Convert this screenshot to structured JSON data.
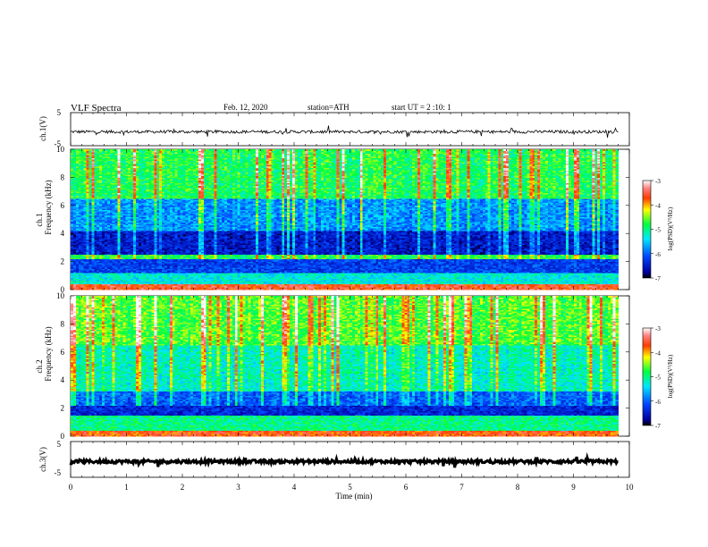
{
  "header": {
    "title": "VLF Spectra",
    "date": "Feb. 12, 2020",
    "station": "station=ATH",
    "start": "start UT = 2 :10: 1"
  },
  "chart_data": [
    {
      "type": "line",
      "id": "ch1-waveform",
      "ylabel": "ch.1(V)",
      "yticks": [
        "5",
        "-5"
      ],
      "ylim": [
        -5,
        5
      ],
      "xlim": [
        0,
        10
      ],
      "data_extent_x": [
        0,
        9.8
      ],
      "baseline": -0.8,
      "color": "#000000"
    },
    {
      "type": "heatmap",
      "id": "ch1-spectrogram",
      "ylabel_1": "ch.1",
      "ylabel_2": "Frequency (kHz)",
      "yticks": [
        "0",
        "2",
        "4",
        "6",
        "8",
        "10"
      ],
      "ylim": [
        0,
        10
      ],
      "xlim": [
        0,
        10
      ],
      "data_extent_x": [
        0,
        9.8
      ],
      "colorbar": {
        "label": "log(PSD)(V²/Hz)",
        "ticks": [
          "-3",
          "-4",
          "-5",
          "-6",
          "-7"
        ],
        "range": [
          -7,
          -3
        ]
      },
      "bands": [
        {
          "f": [
            0,
            0.4
          ],
          "v": -3.6
        },
        {
          "f": [
            0.4,
            1.2
          ],
          "v": -5.3
        },
        {
          "f": [
            1.2,
            2.2
          ],
          "v": -6.2
        },
        {
          "f": [
            2.2,
            2.5
          ],
          "v": -4.9
        },
        {
          "f": [
            2.5,
            4.2
          ],
          "v": -6.6
        },
        {
          "f": [
            4.2,
            6.5
          ],
          "v": -5.9
        },
        {
          "f": [
            6.5,
            10
          ],
          "v": -5.0
        }
      ]
    },
    {
      "type": "heatmap",
      "id": "ch2-spectrogram",
      "ylabel_1": "ch.2",
      "ylabel_2": "Frequency (kHz)",
      "yticks": [
        "0",
        "2",
        "4",
        "6",
        "8",
        "10"
      ],
      "ylim": [
        0,
        10
      ],
      "xlim": [
        0,
        10
      ],
      "data_extent_x": [
        0,
        9.8
      ],
      "colorbar": {
        "label": "log(PSD)(V²/Hz)",
        "ticks": [
          "-3",
          "-4",
          "-5",
          "-6",
          "-7"
        ],
        "range": [
          -7,
          -3
        ]
      },
      "bands": [
        {
          "f": [
            0,
            0.4
          ],
          "v": -3.7
        },
        {
          "f": [
            0.4,
            1.5
          ],
          "v": -5.0
        },
        {
          "f": [
            1.5,
            2.2
          ],
          "v": -6.4
        },
        {
          "f": [
            2.2,
            3.2
          ],
          "v": -6.1
        },
        {
          "f": [
            3.2,
            6.5
          ],
          "v": -5.3
        },
        {
          "f": [
            6.5,
            10
          ],
          "v": -4.8
        }
      ]
    },
    {
      "type": "line",
      "id": "ch3-waveform",
      "ylabel": "ch.3(V)",
      "yticks": [
        "5",
        "-5"
      ],
      "ylim": [
        -5,
        5
      ],
      "xlim": [
        0,
        10
      ],
      "data_extent_x": [
        0,
        9.8
      ],
      "baseline": -0.6,
      "color": "#000000"
    }
  ],
  "xaxis": {
    "label": "Time (min)",
    "ticks": [
      "0",
      "1",
      "2",
      "3",
      "4",
      "5",
      "6",
      "7",
      "8",
      "9",
      "10"
    ]
  }
}
